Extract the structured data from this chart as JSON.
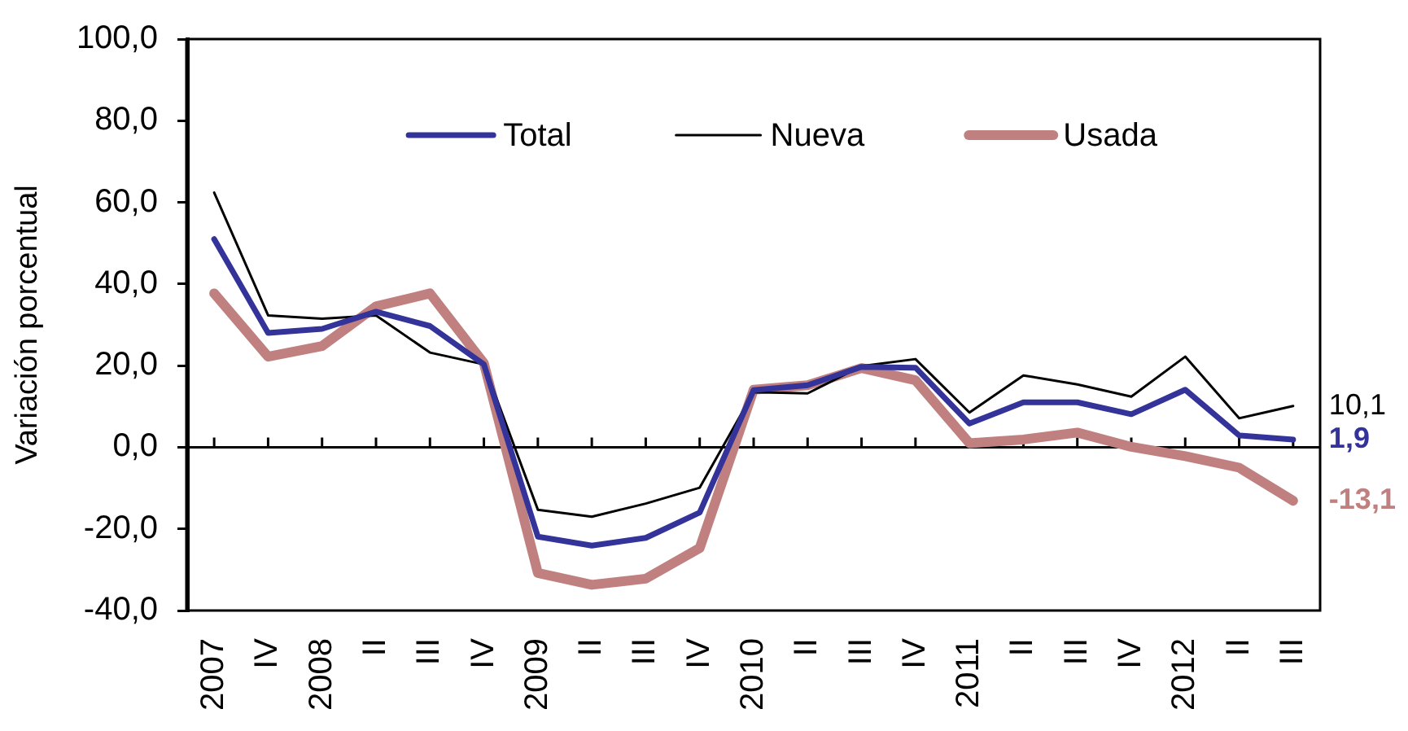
{
  "chart_data": {
    "type": "line",
    "ylabel": "Variación porcentual",
    "categories": [
      "2007",
      "IV",
      "2008",
      "II",
      "III",
      "IV",
      "2009",
      "II",
      "III",
      "IV",
      "2010",
      "II",
      "III",
      "IV",
      "2011",
      "II",
      "III",
      "IV",
      "2012",
      "II",
      "III"
    ],
    "series": [
      {
        "name": "Total",
        "color": "#333399",
        "values": [
          51.0,
          28.0,
          29.0,
          33.2,
          29.7,
          20.3,
          -21.9,
          -24.1,
          -22.2,
          -16.0,
          14.0,
          15.2,
          19.7,
          19.5,
          5.8,
          11.0,
          11.0,
          8.1,
          14.1,
          2.9,
          1.9
        ],
        "value_labels": [
          null,
          null,
          null,
          null,
          null,
          null,
          null,
          null,
          null,
          null,
          null,
          null,
          null,
          null,
          null,
          null,
          null,
          null,
          null,
          null,
          "1,9"
        ]
      },
      {
        "name": "Nueva",
        "color": "#000000",
        "values": [
          62.4,
          32.3,
          31.5,
          32.3,
          23.2,
          20.3,
          -15.3,
          -17.0,
          -13.8,
          -9.9,
          13.5,
          13.2,
          19.9,
          21.6,
          8.5,
          17.6,
          15.4,
          12.4,
          22.2,
          7.1,
          10.1
        ],
        "value_labels": [
          null,
          null,
          null,
          null,
          null,
          null,
          null,
          null,
          null,
          null,
          null,
          null,
          null,
          null,
          null,
          null,
          null,
          null,
          null,
          null,
          "10,1"
        ]
      },
      {
        "name": "Usada",
        "color": "#c08080",
        "values": [
          37.7,
          22.2,
          24.8,
          34.5,
          37.7,
          20.6,
          -30.8,
          -33.7,
          -32.2,
          -24.7,
          14.1,
          15.2,
          19.4,
          16.4,
          1.0,
          1.9,
          3.6,
          0.1,
          -2.2,
          -5.0,
          -13.1
        ],
        "value_labels": [
          null,
          null,
          null,
          null,
          null,
          null,
          null,
          null,
          null,
          null,
          null,
          null,
          null,
          null,
          null,
          null,
          null,
          null,
          null,
          null,
          "-13,1"
        ]
      }
    ],
    "ylim": [
      -40,
      100
    ],
    "yticks": [
      {
        "value": -40,
        "label": "-40,0"
      },
      {
        "value": -20,
        "label": "-20,0"
      },
      {
        "value": 0,
        "label": "0,0"
      },
      {
        "value": 20,
        "label": "20,0"
      },
      {
        "value": 40,
        "label": "40,0"
      },
      {
        "value": 60,
        "label": "60,0"
      },
      {
        "value": 80,
        "label": "80,0"
      },
      {
        "value": 100,
        "label": "100,0"
      }
    ],
    "legend": "top"
  }
}
